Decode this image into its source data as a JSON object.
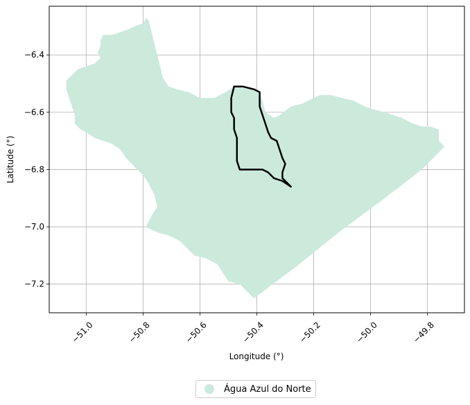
{
  "chart_data": {
    "type": "map",
    "title": "",
    "xlabel": "Longitude (°)",
    "ylabel": "Latitude (°)",
    "xlim": [
      -51.13,
      -49.67
    ],
    "ylim": [
      -7.3,
      -6.23
    ],
    "x_ticks": [
      -51.0,
      -50.8,
      -50.6,
      -50.4,
      -50.2,
      -50.0,
      -49.8
    ],
    "x_tick_labels": [
      "−51.0",
      "−50.8",
      "−50.6",
      "−50.4",
      "−50.2",
      "−50.0",
      "−49.8"
    ],
    "y_ticks": [
      -6.4,
      -6.6,
      -6.8,
      -7.0,
      -7.2
    ],
    "y_tick_labels": [
      "−6.4",
      "−6.6",
      "−6.8",
      "−7.0",
      "−7.2"
    ],
    "grid": true,
    "legend_position": "bottom-center",
    "layers": [
      {
        "name": "Água Azul do Norte",
        "kind": "polygon",
        "fill": "#cceadc",
        "coordinates": [
          [
            -50.79,
            -6.27
          ],
          [
            -50.8,
            -6.29
          ],
          [
            -50.83,
            -6.3
          ],
          [
            -50.85,
            -6.31
          ],
          [
            -50.88,
            -6.32
          ],
          [
            -50.91,
            -6.33
          ],
          [
            -50.94,
            -6.33
          ],
          [
            -50.95,
            -6.35
          ],
          [
            -50.95,
            -6.37
          ],
          [
            -50.96,
            -6.39
          ],
          [
            -50.95,
            -6.41
          ],
          [
            -50.97,
            -6.43
          ],
          [
            -51.0,
            -6.44
          ],
          [
            -51.03,
            -6.45
          ],
          [
            -51.05,
            -6.47
          ],
          [
            -51.07,
            -6.49
          ],
          [
            -51.07,
            -6.52
          ],
          [
            -51.06,
            -6.55
          ],
          [
            -51.05,
            -6.58
          ],
          [
            -51.04,
            -6.61
          ],
          [
            -51.04,
            -6.64
          ],
          [
            -51.02,
            -6.66
          ],
          [
            -51.0,
            -6.67
          ],
          [
            -50.97,
            -6.69
          ],
          [
            -50.94,
            -6.7
          ],
          [
            -50.91,
            -6.71
          ],
          [
            -50.88,
            -6.73
          ],
          [
            -50.86,
            -6.76
          ],
          [
            -50.84,
            -6.78
          ],
          [
            -50.82,
            -6.8
          ],
          [
            -50.8,
            -6.82
          ],
          [
            -50.78,
            -6.85
          ],
          [
            -50.76,
            -6.89
          ],
          [
            -50.75,
            -6.93
          ],
          [
            -50.77,
            -6.96
          ],
          [
            -50.79,
            -7.0
          ],
          [
            -50.75,
            -7.02
          ],
          [
            -50.71,
            -7.03
          ],
          [
            -50.67,
            -7.05
          ],
          [
            -50.64,
            -7.08
          ],
          [
            -50.62,
            -7.1
          ],
          [
            -50.58,
            -7.11
          ],
          [
            -50.54,
            -7.13
          ],
          [
            -50.52,
            -7.16
          ],
          [
            -50.5,
            -7.19
          ],
          [
            -50.46,
            -7.2
          ],
          [
            -50.43,
            -7.23
          ],
          [
            -50.41,
            -7.25
          ],
          [
            -50.25,
            -7.13
          ],
          [
            -50.1,
            -7.01
          ],
          [
            -49.95,
            -6.9
          ],
          [
            -49.82,
            -6.8
          ],
          [
            -49.74,
            -6.72
          ],
          [
            -49.76,
            -6.7
          ],
          [
            -49.76,
            -6.66
          ],
          [
            -49.79,
            -6.65
          ],
          [
            -49.82,
            -6.65
          ],
          [
            -49.85,
            -6.64
          ],
          [
            -49.89,
            -6.62
          ],
          [
            -49.92,
            -6.61
          ],
          [
            -49.95,
            -6.6
          ],
          [
            -49.99,
            -6.59
          ],
          [
            -50.02,
            -6.58
          ],
          [
            -50.06,
            -6.56
          ],
          [
            -50.1,
            -6.55
          ],
          [
            -50.14,
            -6.54
          ],
          [
            -50.18,
            -6.54
          ],
          [
            -50.2,
            -6.55
          ],
          [
            -50.24,
            -6.57
          ],
          [
            -50.28,
            -6.58
          ],
          [
            -50.32,
            -6.61
          ],
          [
            -50.34,
            -6.62
          ],
          [
            -50.37,
            -6.6
          ],
          [
            -50.38,
            -6.56
          ],
          [
            -50.4,
            -6.52
          ],
          [
            -50.44,
            -6.51
          ],
          [
            -50.48,
            -6.51
          ],
          [
            -50.51,
            -6.53
          ],
          [
            -50.55,
            -6.55
          ],
          [
            -50.6,
            -6.55
          ],
          [
            -50.64,
            -6.53
          ],
          [
            -50.68,
            -6.52
          ],
          [
            -50.71,
            -6.51
          ],
          [
            -50.73,
            -6.48
          ],
          [
            -50.74,
            -6.44
          ],
          [
            -50.75,
            -6.4
          ],
          [
            -50.76,
            -6.36
          ],
          [
            -50.77,
            -6.32
          ],
          [
            -50.78,
            -6.28
          ]
        ]
      },
      {
        "name": "outline",
        "kind": "line",
        "stroke": "#000000",
        "coordinates": [
          [
            -50.48,
            -6.51
          ],
          [
            -50.45,
            -6.51
          ],
          [
            -50.41,
            -6.52
          ],
          [
            -50.39,
            -6.53
          ],
          [
            -50.39,
            -6.58
          ],
          [
            -50.38,
            -6.61
          ],
          [
            -50.37,
            -6.64
          ],
          [
            -50.36,
            -6.67
          ],
          [
            -50.35,
            -6.69
          ],
          [
            -50.33,
            -6.7
          ],
          [
            -50.32,
            -6.73
          ],
          [
            -50.31,
            -6.76
          ],
          [
            -50.3,
            -6.78
          ],
          [
            -50.31,
            -6.81
          ],
          [
            -50.31,
            -6.83
          ],
          [
            -50.28,
            -6.86
          ],
          [
            -50.31,
            -6.84
          ],
          [
            -50.34,
            -6.83
          ],
          [
            -50.36,
            -6.81
          ],
          [
            -50.38,
            -6.8
          ],
          [
            -50.42,
            -6.8
          ],
          [
            -50.46,
            -6.8
          ],
          [
            -50.47,
            -6.77
          ],
          [
            -50.47,
            -6.73
          ],
          [
            -50.47,
            -6.69
          ],
          [
            -50.48,
            -6.66
          ],
          [
            -50.48,
            -6.62
          ],
          [
            -50.49,
            -6.6
          ],
          [
            -50.49,
            -6.58
          ],
          [
            -50.49,
            -6.55
          ],
          [
            -50.48,
            -6.51
          ]
        ]
      }
    ],
    "legend": [
      {
        "label": "Água Azul do Norte",
        "color": "#cceadc"
      }
    ]
  }
}
